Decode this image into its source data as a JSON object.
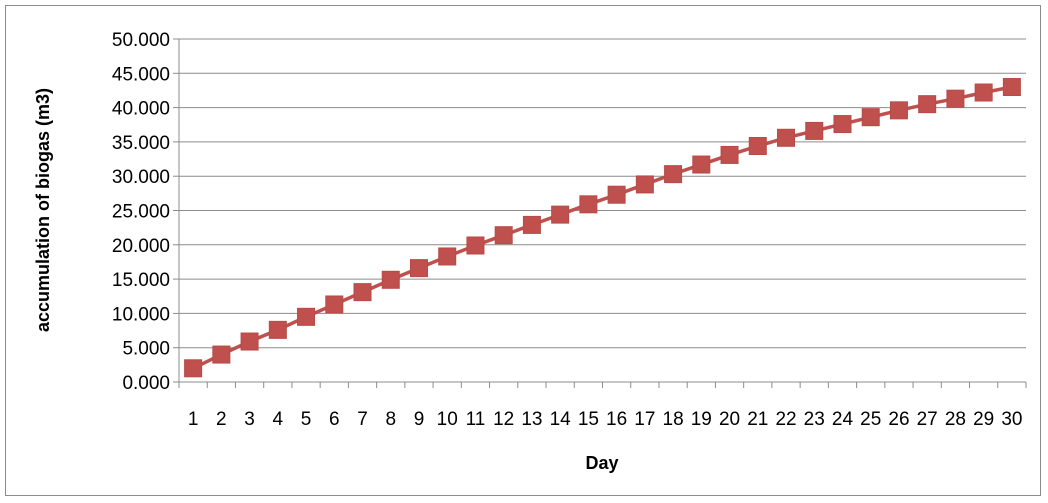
{
  "chart_data": {
    "type": "line",
    "title": "",
    "xlabel": "Day",
    "ylabel": "accumulation of biogas (m3)",
    "categories": [
      "1",
      "2",
      "3",
      "4",
      "5",
      "6",
      "7",
      "8",
      "9",
      "10",
      "11",
      "12",
      "13",
      "14",
      "15",
      "16",
      "17",
      "18",
      "19",
      "20",
      "21",
      "22",
      "23",
      "24",
      "25",
      "26",
      "27",
      "28",
      "29",
      "30"
    ],
    "series": [
      {
        "values": [
          2.0,
          4.0,
          5.9,
          7.6,
          9.5,
          11.3,
          13.1,
          14.9,
          16.6,
          18.3,
          19.9,
          21.4,
          22.9,
          24.4,
          25.9,
          27.3,
          28.8,
          30.3,
          31.7,
          33.1,
          34.4,
          35.6,
          36.6,
          37.6,
          38.6,
          39.6,
          40.5,
          41.3,
          42.2,
          43.0
        ],
        "color": "#c0504d"
      }
    ],
    "ylim": [
      0,
      50
    ],
    "yticks": [
      "0.000",
      "5.000",
      "10.000",
      "15.000",
      "20.000",
      "25.000",
      "30.000",
      "35.000",
      "40.000",
      "45.000",
      "50.000"
    ],
    "grid": true,
    "legend": "none",
    "marker": "square"
  }
}
